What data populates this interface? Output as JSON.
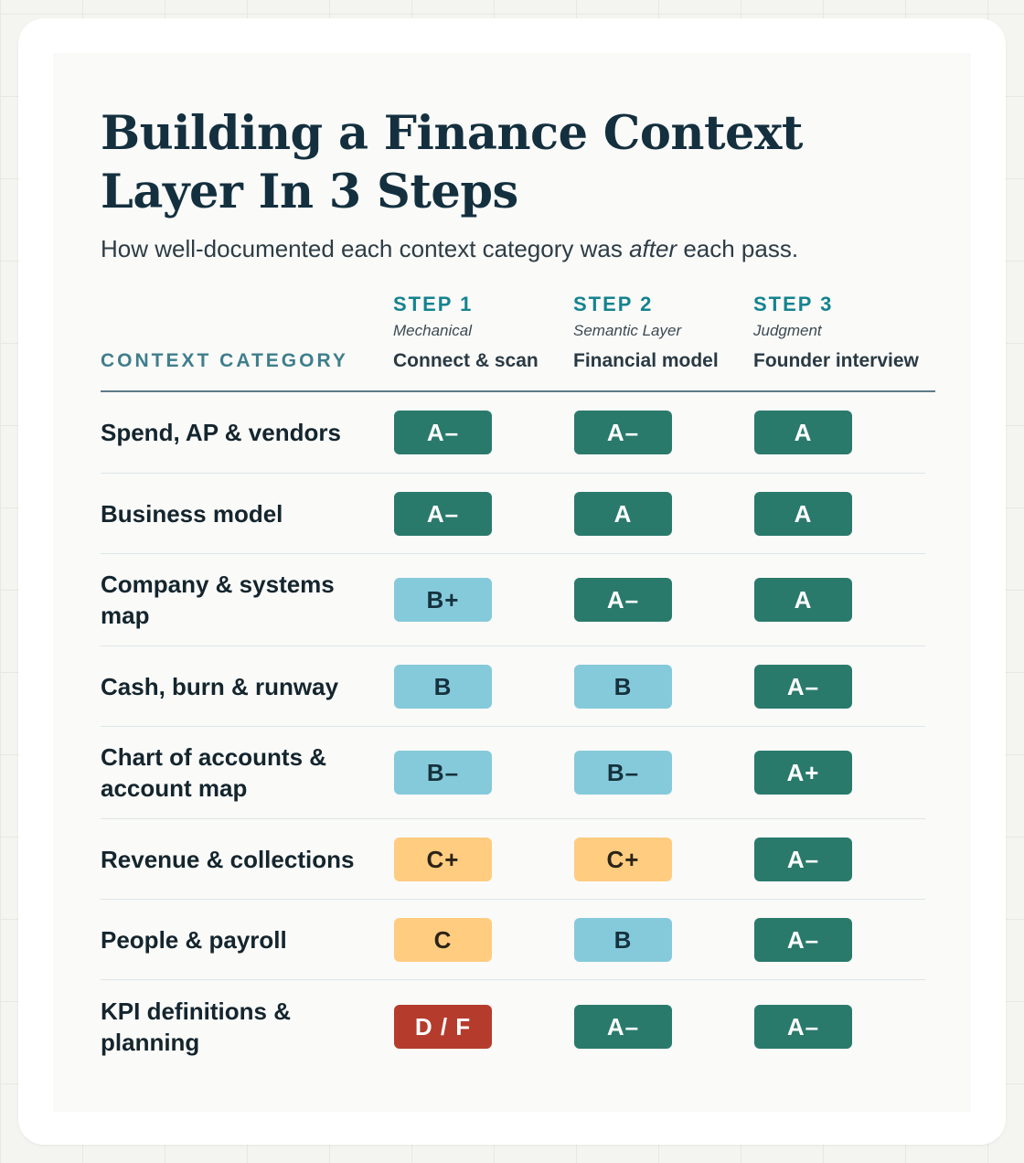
{
  "title": "Building a Finance Context Layer In 3 Steps",
  "subtitle": {
    "before": "How well-documented each context category was ",
    "emphasis": "after",
    "after": " each pass."
  },
  "column_header": "CONTEXT CATEGORY",
  "colors": {
    "title": "#14303f",
    "step_accent": "#14838f",
    "grade_A": "#2a7a6c",
    "grade_B": "#85cadb",
    "grade_C": "#ffcc80",
    "grade_DF": "#b53c2c"
  },
  "chart_data": {
    "type": "table",
    "steps": [
      {
        "label": "STEP 1",
        "kind": "Mechanical",
        "name": "Connect & scan"
      },
      {
        "label": "STEP 2",
        "kind": "Semantic Layer",
        "name": "Financial model"
      },
      {
        "label": "STEP 3",
        "kind": "Judgment",
        "name": "Founder interview"
      }
    ],
    "rows": [
      {
        "category": "Spend, AP & vendors",
        "grades": [
          "A–",
          "A–",
          "A"
        ]
      },
      {
        "category": "Business model",
        "grades": [
          "A–",
          "A",
          "A"
        ]
      },
      {
        "category": "Company & systems map",
        "grades": [
          "B+",
          "A–",
          "A"
        ]
      },
      {
        "category": "Cash, burn & runway",
        "grades": [
          "B",
          "B",
          "A–"
        ]
      },
      {
        "category": "Chart of accounts & account map",
        "grades": [
          "B–",
          "B–",
          "A+"
        ]
      },
      {
        "category": "Revenue & collections",
        "grades": [
          "C+",
          "C+",
          "A–"
        ]
      },
      {
        "category": "People & payroll",
        "grades": [
          "C",
          "B",
          "A–"
        ]
      },
      {
        "category": "KPI definitions & planning",
        "grades": [
          "D / F",
          "A–",
          "A–"
        ]
      }
    ]
  }
}
